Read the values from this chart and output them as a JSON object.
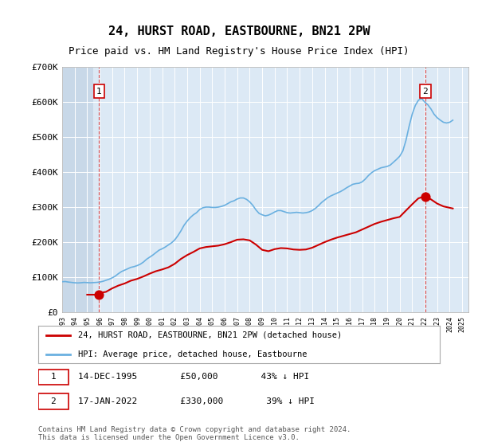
{
  "title": "24, HURST ROAD, EASTBOURNE, BN21 2PW",
  "subtitle": "Price paid vs. HM Land Registry's House Price Index (HPI)",
  "ylabel": "",
  "background_plot": "#dce9f5",
  "background_hatch": "#c8d8e8",
  "grid_color": "#ffffff",
  "hpi_color": "#6ab0e0",
  "price_color": "#cc0000",
  "ylim": [
    0,
    700000
  ],
  "yticks": [
    0,
    100000,
    200000,
    300000,
    400000,
    500000,
    600000,
    700000
  ],
  "ytick_labels": [
    "£0",
    "£100K",
    "£200K",
    "£300K",
    "£400K",
    "£500K",
    "£600K",
    "£700K"
  ],
  "transaction1": {
    "date": "14-DEC-1995",
    "price": 50000,
    "label": "1",
    "year": 1995.96
  },
  "transaction2": {
    "date": "17-JAN-2022",
    "price": 330000,
    "label": "2",
    "year": 2022.05
  },
  "legend_line1": "24, HURST ROAD, EASTBOURNE, BN21 2PW (detached house)",
  "legend_line2": "HPI: Average price, detached house, Eastbourne",
  "note1": "1   14-DEC-1995        £50,000        43% ↓ HPI",
  "note2": "2   17-JAN-2022        £330,000        39% ↓ HPI",
  "footer": "Contains HM Land Registry data © Crown copyright and database right 2024.\nThis data is licensed under the Open Government Licence v3.0.",
  "hpi_data_x": [
    1993.0,
    1993.25,
    1993.5,
    1993.75,
    1994.0,
    1994.25,
    1994.5,
    1994.75,
    1995.0,
    1995.25,
    1995.5,
    1995.75,
    1996.0,
    1996.25,
    1996.5,
    1996.75,
    1997.0,
    1997.25,
    1997.5,
    1997.75,
    1998.0,
    1998.25,
    1998.5,
    1998.75,
    1999.0,
    1999.25,
    1999.5,
    1999.75,
    2000.0,
    2000.25,
    2000.5,
    2000.75,
    2001.0,
    2001.25,
    2001.5,
    2001.75,
    2002.0,
    2002.25,
    2002.5,
    2002.75,
    2003.0,
    2003.25,
    2003.5,
    2003.75,
    2004.0,
    2004.25,
    2004.5,
    2004.75,
    2005.0,
    2005.25,
    2005.5,
    2005.75,
    2006.0,
    2006.25,
    2006.5,
    2006.75,
    2007.0,
    2007.25,
    2007.5,
    2007.75,
    2008.0,
    2008.25,
    2008.5,
    2008.75,
    2009.0,
    2009.25,
    2009.5,
    2009.75,
    2010.0,
    2010.25,
    2010.5,
    2010.75,
    2011.0,
    2011.25,
    2011.5,
    2011.75,
    2012.0,
    2012.25,
    2012.5,
    2012.75,
    2013.0,
    2013.25,
    2013.5,
    2013.75,
    2014.0,
    2014.25,
    2014.5,
    2014.75,
    2015.0,
    2015.25,
    2015.5,
    2015.75,
    2016.0,
    2016.25,
    2016.5,
    2016.75,
    2017.0,
    2017.25,
    2017.5,
    2017.75,
    2018.0,
    2018.25,
    2018.5,
    2018.75,
    2019.0,
    2019.25,
    2019.5,
    2019.75,
    2020.0,
    2020.25,
    2020.5,
    2020.75,
    2021.0,
    2021.25,
    2021.5,
    2021.75,
    2022.0,
    2022.25,
    2022.5,
    2022.75,
    2023.0,
    2023.25,
    2023.5,
    2023.75,
    2024.0,
    2024.25
  ],
  "hpi_data_y": [
    87000,
    87500,
    86000,
    85000,
    84000,
    83500,
    84000,
    85000,
    84500,
    84000,
    84500,
    85000,
    86000,
    88000,
    91000,
    94000,
    98000,
    103000,
    110000,
    116000,
    120000,
    124000,
    128000,
    130000,
    133000,
    137000,
    143000,
    151000,
    157000,
    163000,
    170000,
    177000,
    181000,
    186000,
    192000,
    198000,
    206000,
    218000,
    232000,
    248000,
    260000,
    270000,
    278000,
    284000,
    293000,
    298000,
    300000,
    300000,
    299000,
    299000,
    300000,
    302000,
    305000,
    310000,
    315000,
    318000,
    323000,
    326000,
    326000,
    322000,
    315000,
    305000,
    292000,
    282000,
    278000,
    275000,
    277000,
    281000,
    286000,
    290000,
    290000,
    287000,
    284000,
    283000,
    284000,
    285000,
    284000,
    283000,
    284000,
    286000,
    290000,
    296000,
    304000,
    313000,
    320000,
    327000,
    332000,
    336000,
    340000,
    344000,
    349000,
    355000,
    360000,
    365000,
    367000,
    368000,
    372000,
    380000,
    390000,
    398000,
    404000,
    408000,
    412000,
    414000,
    416000,
    420000,
    428000,
    436000,
    445000,
    460000,
    490000,
    530000,
    565000,
    590000,
    605000,
    610000,
    600000,
    592000,
    580000,
    565000,
    555000,
    548000,
    542000,
    540000,
    542000,
    548000
  ],
  "price_data_x": [
    1995.0,
    1995.25,
    1995.5,
    1995.75,
    1995.96,
    1996.0,
    1996.5,
    1997.0,
    1997.5,
    1998.0,
    1998.5,
    1999.0,
    1999.5,
    2000.0,
    2000.5,
    2001.0,
    2001.5,
    2002.0,
    2002.5,
    2003.0,
    2003.5,
    2004.0,
    2004.5,
    2005.0,
    2005.5,
    2006.0,
    2006.5,
    2007.0,
    2007.5,
    2008.0,
    2008.5,
    2009.0,
    2009.5,
    2010.0,
    2010.5,
    2011.0,
    2011.5,
    2012.0,
    2012.5,
    2013.0,
    2013.5,
    2014.0,
    2014.5,
    2015.0,
    2015.5,
    2016.0,
    2016.5,
    2017.0,
    2017.5,
    2018.0,
    2018.5,
    2019.0,
    2019.5,
    2020.0,
    2020.5,
    2021.0,
    2021.5,
    2021.96,
    2022.05,
    2022.5,
    2023.0,
    2023.5,
    2024.0,
    2024.25
  ],
  "price_data_y": [
    50000,
    50000,
    50000,
    50000,
    50000,
    55000,
    58000,
    68000,
    76000,
    82000,
    90000,
    95000,
    102000,
    110000,
    117000,
    122000,
    128000,
    138000,
    152000,
    163000,
    172000,
    182000,
    186000,
    188000,
    190000,
    194000,
    200000,
    207000,
    208000,
    205000,
    193000,
    178000,
    174000,
    180000,
    183000,
    182000,
    179000,
    178000,
    179000,
    184000,
    192000,
    200000,
    207000,
    213000,
    218000,
    223000,
    228000,
    236000,
    244000,
    252000,
    258000,
    263000,
    268000,
    272000,
    290000,
    308000,
    325000,
    330000,
    330000,
    322000,
    310000,
    302000,
    298000,
    296000
  ]
}
